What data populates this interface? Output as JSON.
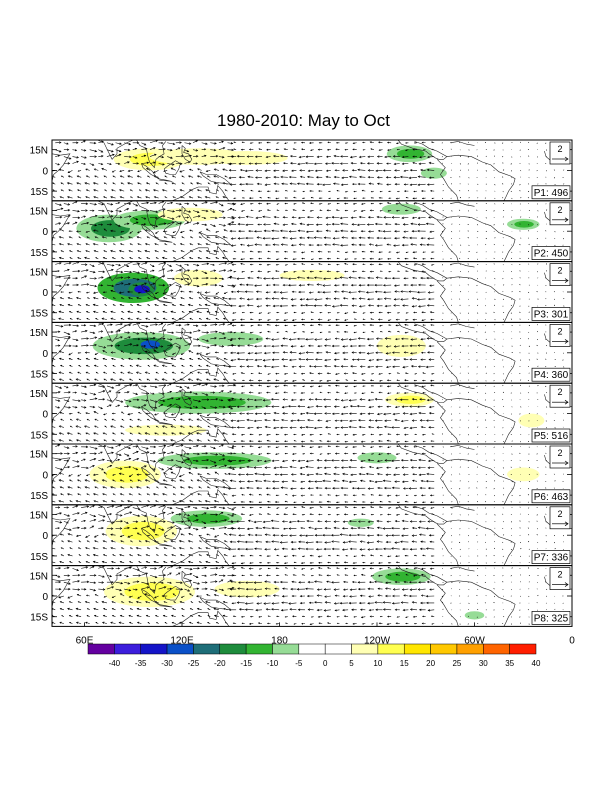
{
  "title": "1980-2010: May to Oct",
  "lat_labels": [
    "15N",
    "0",
    "15S"
  ],
  "lon_labels": [
    "60E",
    "120E",
    "180",
    "120W",
    "60W",
    "0"
  ],
  "reference_vector_label": "2",
  "panels": [
    {
      "label": "P1: 496",
      "anomalies": [
        {
          "lon": 100,
          "lat": 8,
          "rx": 22,
          "ry": 8,
          "v": 12
        },
        {
          "lon": 130,
          "lat": 10,
          "rx": 30,
          "ry": 6,
          "v": 8
        },
        {
          "lon": 160,
          "lat": 9,
          "rx": 25,
          "ry": 5,
          "v": 6
        },
        {
          "lon": 260,
          "lat": 12,
          "rx": 14,
          "ry": 6,
          "v": -13
        },
        {
          "lon": 275,
          "lat": -2,
          "rx": 8,
          "ry": 4,
          "v": -8
        }
      ]
    },
    {
      "label": "P2: 450",
      "anomalies": [
        {
          "lon": 75,
          "lat": 2,
          "rx": 20,
          "ry": 10,
          "v": -17
        },
        {
          "lon": 100,
          "lat": 8,
          "rx": 22,
          "ry": 7,
          "v": -14
        },
        {
          "lon": 125,
          "lat": 12,
          "rx": 20,
          "ry": 5,
          "v": 8
        },
        {
          "lon": 255,
          "lat": 16,
          "rx": 12,
          "ry": 4,
          "v": -8
        },
        {
          "lon": 330,
          "lat": 5,
          "rx": 10,
          "ry": 4,
          "v": -10
        }
      ]
    },
    {
      "label": "P3: 301",
      "anomalies": [
        {
          "lon": 90,
          "lat": 3,
          "rx": 22,
          "ry": 11,
          "v": -22
        },
        {
          "lon": 95,
          "lat": 2,
          "rx": 8,
          "ry": 5,
          "v": -30
        },
        {
          "lon": 130,
          "lat": 10,
          "rx": 15,
          "ry": 6,
          "v": 7
        },
        {
          "lon": 200,
          "lat": 12,
          "rx": 20,
          "ry": 4,
          "v": 6
        }
      ]
    },
    {
      "label": "P4: 360",
      "anomalies": [
        {
          "lon": 95,
          "lat": 5,
          "rx": 30,
          "ry": 10,
          "v": -18
        },
        {
          "lon": 100,
          "lat": 6,
          "rx": 10,
          "ry": 5,
          "v": -28
        },
        {
          "lon": 255,
          "lat": 5,
          "rx": 15,
          "ry": 8,
          "v": 10
        },
        {
          "lon": 150,
          "lat": 10,
          "rx": 20,
          "ry": 5,
          "v": -8
        }
      ]
    },
    {
      "label": "P5: 516",
      "anomalies": [
        {
          "lon": 130,
          "lat": 8,
          "rx": 45,
          "ry": 8,
          "v": -13
        },
        {
          "lon": 110,
          "lat": -12,
          "rx": 25,
          "ry": 4,
          "v": 8
        },
        {
          "lon": 260,
          "lat": 10,
          "rx": 15,
          "ry": 5,
          "v": 12
        },
        {
          "lon": 335,
          "lat": -5,
          "rx": 8,
          "ry": 5,
          "v": 10
        }
      ]
    },
    {
      "label": "P6: 463",
      "anomalies": [
        {
          "lon": 85,
          "lat": 0,
          "rx": 22,
          "ry": 10,
          "v": 12
        },
        {
          "lon": 140,
          "lat": 10,
          "rx": 35,
          "ry": 6,
          "v": -14
        },
        {
          "lon": 240,
          "lat": 12,
          "rx": 12,
          "ry": 4,
          "v": -8
        },
        {
          "lon": 330,
          "lat": 0,
          "rx": 10,
          "ry": 5,
          "v": 10
        }
      ]
    },
    {
      "label": "P7: 336",
      "anomalies": [
        {
          "lon": 95,
          "lat": 3,
          "rx": 22,
          "ry": 11,
          "v": 15
        },
        {
          "lon": 135,
          "lat": 12,
          "rx": 22,
          "ry": 6,
          "v": -13
        },
        {
          "lon": 230,
          "lat": 9,
          "rx": 8,
          "ry": 3,
          "v": -8
        }
      ]
    },
    {
      "label": "P8: 325",
      "anomalies": [
        {
          "lon": 100,
          "lat": 3,
          "rx": 28,
          "ry": 11,
          "v": 14
        },
        {
          "lon": 160,
          "lat": 5,
          "rx": 20,
          "ry": 6,
          "v": 8
        },
        {
          "lon": 255,
          "lat": 14,
          "rx": 18,
          "ry": 6,
          "v": -14
        },
        {
          "lon": 300,
          "lat": -14,
          "rx": 6,
          "ry": 3,
          "v": -8
        }
      ]
    }
  ],
  "colorbar": {
    "labels": [
      "-40",
      "-35",
      "-30",
      "-25",
      "-20",
      "-15",
      "-10",
      "-5",
      "0",
      "5",
      "10",
      "15",
      "20",
      "25",
      "30",
      "35",
      "40"
    ],
    "colors": [
      "#6400a0",
      "#3c1edc",
      "#1414c8",
      "#0a50c8",
      "#1e6e78",
      "#1e8c3c",
      "#32b432",
      "#96dc96",
      "#ffffff",
      "#ffffff",
      "#ffffb4",
      "#ffff50",
      "#ffe600",
      "#ffc800",
      "#ffa000",
      "#ff6400",
      "#ff1e00"
    ]
  }
}
